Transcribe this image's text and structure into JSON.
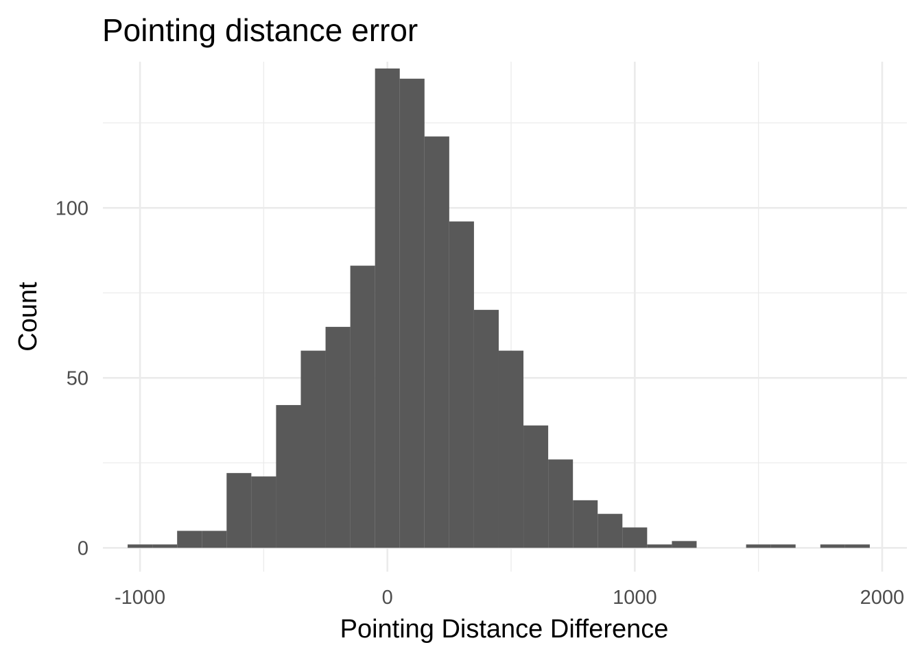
{
  "chart_data": {
    "type": "bar",
    "title": "Pointing distance error",
    "xlabel": "Pointing Distance Difference",
    "ylabel": "Count",
    "xlim": [
      -1150,
      2100
    ],
    "ylim": [
      -7,
      143
    ],
    "x_ticks": [
      -1000,
      0,
      1000,
      2000
    ],
    "x_tick_labels": [
      "-1000",
      "0",
      "1000",
      "2000"
    ],
    "y_ticks": [
      0,
      50,
      100
    ],
    "y_tick_labels": [
      "0",
      "50",
      "100"
    ],
    "x_minor": [
      -500,
      500,
      1500
    ],
    "y_minor": [
      25,
      75,
      125
    ],
    "grid": true,
    "bar_color": "#595959",
    "grid_color": "#ebebeb",
    "bin_width": 100,
    "bins": [
      {
        "x0": -1050,
        "x1": -950,
        "count": 1
      },
      {
        "x0": -950,
        "x1": -850,
        "count": 1
      },
      {
        "x0": -850,
        "x1": -750,
        "count": 5
      },
      {
        "x0": -750,
        "x1": -650,
        "count": 5
      },
      {
        "x0": -650,
        "x1": -550,
        "count": 22
      },
      {
        "x0": -550,
        "x1": -450,
        "count": 21
      },
      {
        "x0": -450,
        "x1": -350,
        "count": 42
      },
      {
        "x0": -350,
        "x1": -250,
        "count": 58
      },
      {
        "x0": -250,
        "x1": -150,
        "count": 65
      },
      {
        "x0": -150,
        "x1": -50,
        "count": 83
      },
      {
        "x0": -50,
        "x1": 50,
        "count": 141
      },
      {
        "x0": 50,
        "x1": 150,
        "count": 138
      },
      {
        "x0": 150,
        "x1": 250,
        "count": 121
      },
      {
        "x0": 250,
        "x1": 350,
        "count": 96
      },
      {
        "x0": 350,
        "x1": 450,
        "count": 70
      },
      {
        "x0": 450,
        "x1": 550,
        "count": 58
      },
      {
        "x0": 550,
        "x1": 650,
        "count": 36
      },
      {
        "x0": 650,
        "x1": 750,
        "count": 26
      },
      {
        "x0": 750,
        "x1": 850,
        "count": 14
      },
      {
        "x0": 850,
        "x1": 950,
        "count": 10
      },
      {
        "x0": 950,
        "x1": 1050,
        "count": 6
      },
      {
        "x0": 1050,
        "x1": 1150,
        "count": 1
      },
      {
        "x0": 1150,
        "x1": 1250,
        "count": 2
      },
      {
        "x0": 1250,
        "x1": 1350,
        "count": 0
      },
      {
        "x0": 1350,
        "x1": 1450,
        "count": 0
      },
      {
        "x0": 1450,
        "x1": 1550,
        "count": 1
      },
      {
        "x0": 1550,
        "x1": 1650,
        "count": 1
      },
      {
        "x0": 1650,
        "x1": 1750,
        "count": 0
      },
      {
        "x0": 1750,
        "x1": 1850,
        "count": 1
      },
      {
        "x0": 1850,
        "x1": 1950,
        "count": 1
      }
    ]
  }
}
